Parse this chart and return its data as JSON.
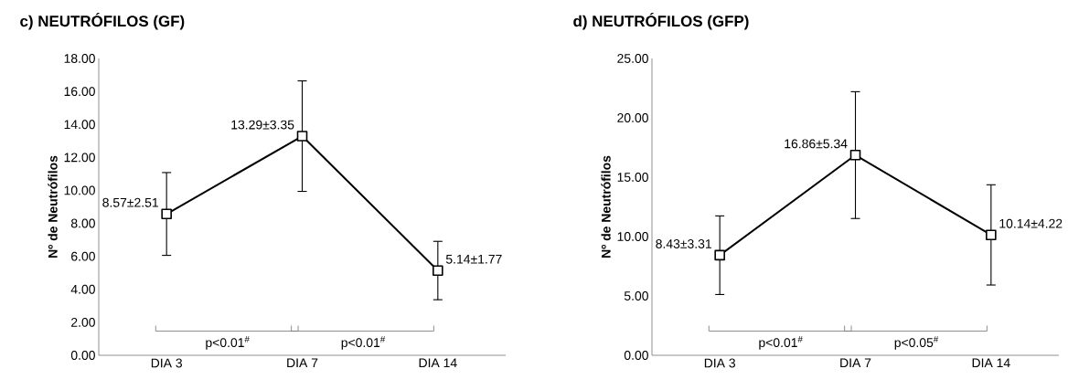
{
  "chart_data": [
    {
      "type": "line",
      "title": "c) NEUTRÓFILOS (GF)",
      "ylabel": "Nº de Neutrófilos",
      "categories": [
        "DIA 3",
        "DIA 7",
        "DIA 14"
      ],
      "values": [
        8.57,
        13.29,
        5.14
      ],
      "errors": [
        2.51,
        3.35,
        1.77
      ],
      "value_labels": [
        "8.57±2.51",
        "13.29±3.35",
        "5.14±1.77"
      ],
      "color": "#000000",
      "marker": "square",
      "ylim": [
        0,
        18
      ],
      "yticks": [
        {
          "value": 0,
          "label": "0.00"
        },
        {
          "value": 2,
          "label": "2.00"
        },
        {
          "value": 4,
          "label": "4.00"
        },
        {
          "value": 6,
          "label": "6.00"
        },
        {
          "value": 8,
          "label": "8.00"
        },
        {
          "value": 10,
          "label": "10.00"
        },
        {
          "value": 12,
          "label": "12.00"
        },
        {
          "value": 14,
          "label": "14.00"
        },
        {
          "value": 16,
          "label": "16.00"
        },
        {
          "value": 18,
          "label": "18.00"
        }
      ],
      "annotations": [
        "p<0.01$^{#}$",
        "p<0.01$^{#}$"
      ]
    },
    {
      "type": "line",
      "title": "d) NEUTRÓFILOS (GFP)",
      "ylabel": "Nº de Neutrófilos",
      "categories": [
        "DIA 3",
        "DIA 7",
        "DIA 14"
      ],
      "values": [
        8.43,
        16.86,
        10.14
      ],
      "errors": [
        3.31,
        5.34,
        4.22
      ],
      "value_labels": [
        "8.43±3.31",
        "16.86±5.34",
        "10.14±4.22"
      ],
      "color": "#000000",
      "marker": "square",
      "ylim": [
        0,
        25
      ],
      "yticks": [
        {
          "value": 0,
          "label": "0.00"
        },
        {
          "value": 5,
          "label": "5.00"
        },
        {
          "value": 10,
          "label": "10.00"
        },
        {
          "value": 15,
          "label": "15.00"
        },
        {
          "value": 20,
          "label": "20.00"
        },
        {
          "value": 25,
          "label": "25.00"
        }
      ],
      "annotations": [
        "p<0.01$^{#}$",
        "p<0.05$^{#}$"
      ]
    }
  ]
}
